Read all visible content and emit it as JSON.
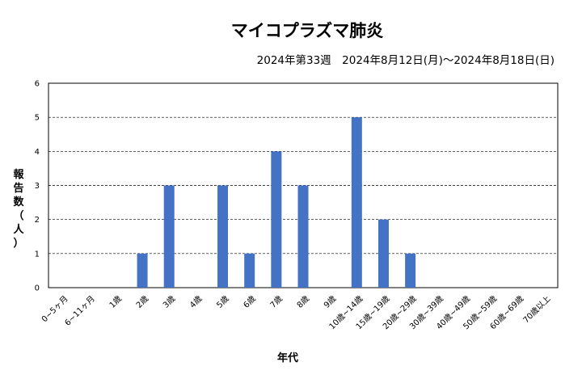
{
  "chart_data": {
    "type": "bar",
    "title": "マイコプラズマ肺炎",
    "subtitle": "2024年第33週　2024年8月12日(月)～2024年8月18日(日)",
    "xlabel": "年代",
    "ylabel": "報告数（人）",
    "ylabel_chars": [
      "報",
      "告",
      "数",
      "（",
      "人",
      "）"
    ],
    "ylim": [
      0,
      6
    ],
    "yticks": [
      "0",
      "1",
      "2",
      "3",
      "4",
      "5",
      "6"
    ],
    "grid": true,
    "bar_color": "#4472C4",
    "categories": [
      "0~5ヶ月",
      "6~11ヶ月",
      "1歳",
      "2歳",
      "3歳",
      "4歳",
      "5歳",
      "6歳",
      "7歳",
      "8歳",
      "9歳",
      "10歳~14歳",
      "15歳~19歳",
      "20歳~29歳",
      "30歳~39歳",
      "40歳~49歳",
      "50歳~59歳",
      "60歳~69歳",
      "70歳以上"
    ],
    "values": [
      0,
      0,
      0,
      1,
      3,
      0,
      3,
      1,
      4,
      3,
      0,
      5,
      2,
      1,
      0,
      0,
      0,
      0,
      0
    ]
  }
}
